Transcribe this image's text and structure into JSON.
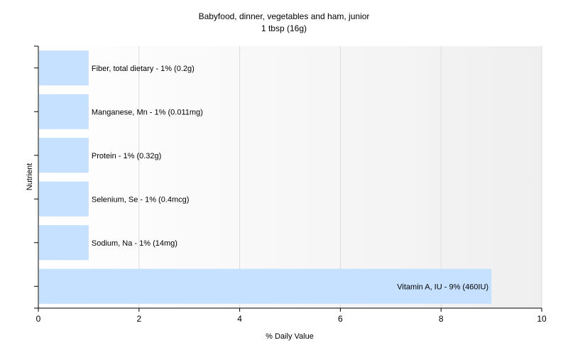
{
  "chart_data": {
    "type": "bar",
    "orientation": "horizontal",
    "title": "Babyfood, dinner, vegetables and ham, junior",
    "subtitle": "1 tbsp (16g)",
    "xlabel": "% Daily Value",
    "ylabel": "Nutrient",
    "xlim": [
      0,
      10
    ],
    "x_ticks": [
      "0",
      "2",
      "4",
      "6",
      "8",
      "10"
    ],
    "grid": true,
    "bar_color": "#c6e0ff",
    "categories": [
      "Fiber, total dietary",
      "Manganese, Mn",
      "Protein",
      "Selenium, Se",
      "Sodium, Na",
      "Vitamin A, IU"
    ],
    "values": [
      1,
      1,
      1,
      1,
      1,
      9
    ],
    "labels": [
      "Fiber, total dietary - 1% (0.2g)",
      "Manganese, Mn - 1% (0.011mg)",
      "Protein - 1% (0.32g)",
      "Selenium, Se - 1% (0.4mcg)",
      "Sodium, Na - 1% (14mg)",
      "Vitamin A, IU - 9% (460IU)"
    ]
  }
}
